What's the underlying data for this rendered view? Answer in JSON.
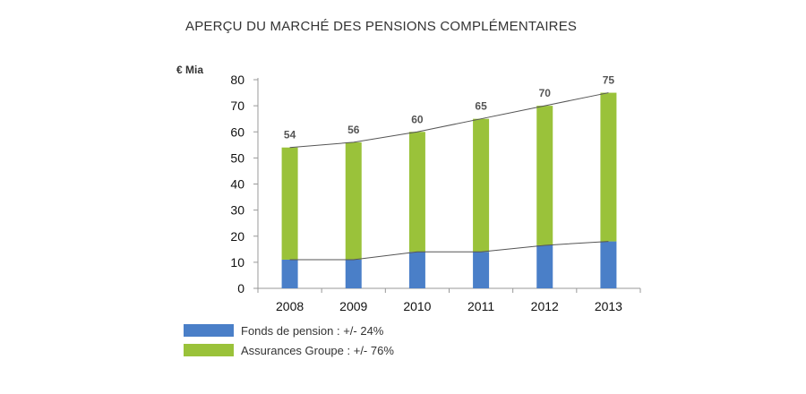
{
  "chart_data": {
    "type": "bar",
    "stacked": true,
    "title": "APERÇU DU MARCHÉ DES PENSIONS COMPLÉMENTAIRES",
    "unit_label": "€ Mia",
    "categories": [
      "2008",
      "2009",
      "2010",
      "2011",
      "2012",
      "2013"
    ],
    "series": [
      {
        "name": "Fonds de pension : +/- 24%",
        "values": [
          11,
          11,
          14,
          14,
          16.5,
          18
        ],
        "color": "#4a7fc8"
      },
      {
        "name": "Assurances Groupe : +/- 76%",
        "values": [
          43,
          45,
          46,
          51,
          53.5,
          57
        ],
        "color": "#9ac23a"
      }
    ],
    "totals": [
      "54",
      "56",
      "60",
      "65",
      "70",
      "75"
    ],
    "ylim": [
      0,
      80
    ],
    "yticks": [
      "0",
      "10",
      "20",
      "30",
      "40",
      "50",
      "60",
      "70",
      "80"
    ],
    "grid": false,
    "legend_position": "bottom-left"
  }
}
